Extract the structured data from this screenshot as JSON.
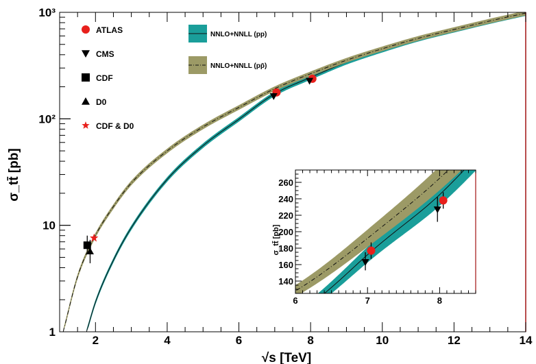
{
  "chart_data": [
    {
      "type": "line",
      "xlabel": "√s [TeV]",
      "ylabel": "σ_tt̄ [pb]",
      "xlim": [
        1,
        14
      ],
      "ylim": [
        1,
        1000
      ],
      "yscale": "log",
      "x_ticks": [
        "2",
        "4",
        "6",
        "8",
        "10",
        "12",
        "14"
      ],
      "y_ticks": [
        "1",
        "10",
        "10²",
        "10³"
      ],
      "grid": false,
      "bands": [
        {
          "name": "NNLO+NNLL (pp)",
          "color": "#1a9e9a",
          "line_style": "solid",
          "x": [
            1.75,
            2,
            2.5,
            3,
            4,
            5,
            6,
            7,
            8,
            9,
            10,
            11,
            12,
            13,
            14
          ],
          "y": [
            1.0,
            1.9,
            4.7,
            9.5,
            27,
            56,
            99,
            172,
            245,
            340,
            442,
            560,
            680,
            820,
            975
          ],
          "rel_width": 0.05
        },
        {
          "name": "NNLO+NNLL (pp̄)",
          "color": "#9c9a66",
          "line_style": "dashdot",
          "x": [
            1.1,
            1.5,
            1.96,
            2.5,
            3,
            4,
            5,
            6,
            7,
            8,
            9,
            10,
            11,
            12,
            13,
            14
          ],
          "y": [
            1.0,
            3.3,
            7.6,
            15,
            25,
            50,
            84,
            128,
            192,
            265,
            355,
            455,
            570,
            690,
            830,
            985
          ],
          "rel_width": 0.05
        }
      ],
      "points": [
        {
          "name": "ATLAS",
          "marker": "circle",
          "color": "#e8201c",
          "x": 7.05,
          "y": 177,
          "err_lo": 10,
          "err_hi": 10
        },
        {
          "name": "ATLAS",
          "marker": "circle",
          "color": "#e8201c",
          "x": 8.05,
          "y": 238,
          "err_lo": 10,
          "err_hi": 10
        },
        {
          "name": "CMS",
          "marker": "triangle-down",
          "color": "#000000",
          "x": 6.97,
          "y": 163,
          "err_lo": 10,
          "err_hi": 12
        },
        {
          "name": "CMS",
          "marker": "triangle-down",
          "color": "#000000",
          "x": 7.97,
          "y": 227,
          "err_lo": 15,
          "err_hi": 15
        },
        {
          "name": "CDF",
          "marker": "square",
          "color": "#000000",
          "x": 1.77,
          "y": 6.5,
          "err_lo": 0.8,
          "err_hi": 1.5
        },
        {
          "name": "D0",
          "marker": "triangle-up",
          "color": "#000000",
          "x": 1.85,
          "y": 5.7,
          "err_lo": 1.3,
          "err_hi": 1.6
        },
        {
          "name": "CDF & D0",
          "marker": "star",
          "color": "#e8201c",
          "x": 1.96,
          "y": 7.6,
          "err_lo": 0.3,
          "err_hi": 0.3
        }
      ],
      "legend": [
        {
          "label": "ATLAS",
          "marker": "circle",
          "color": "#e8201c"
        },
        {
          "label": "CMS",
          "marker": "triangle-down",
          "color": "#000000"
        },
        {
          "label": "CDF",
          "marker": "square",
          "color": "#000000"
        },
        {
          "label": "D0",
          "marker": "triangle-up",
          "color": "#000000"
        },
        {
          "label": "CDF & D0",
          "marker": "star",
          "color": "#e8201c"
        }
      ],
      "band_legend": [
        {
          "label": "NNLO+NNLL (pp)",
          "color": "#1a9e9a"
        },
        {
          "label": "NNLO+NNLL (pp̄)",
          "color": "#9c9a66"
        }
      ]
    },
    {
      "type": "line",
      "inset": true,
      "xlabel": "",
      "ylabel": "σ_tt̄ [pb]",
      "xlim": [
        6,
        8.5
      ],
      "ylim": [
        125,
        275
      ],
      "x_ticks": [
        "6",
        "7",
        "8"
      ],
      "y_ticks": [
        "140",
        "160",
        "180",
        "200",
        "220",
        "240",
        "260"
      ]
    }
  ]
}
